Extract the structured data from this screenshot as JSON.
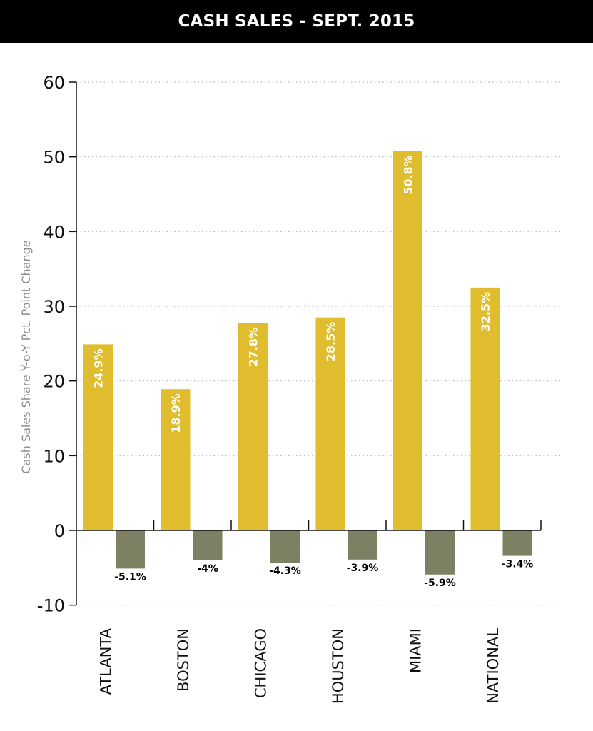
{
  "header": {
    "title": "CASH SALES - SEPT. 2015"
  },
  "chart_data": {
    "type": "bar",
    "title": "CASH SALES - SEPT. 2015",
    "xlabel": "",
    "ylabel": "Cash Sales Share Y-o-Y Pct. Point Change",
    "categories": [
      "ATLANTA",
      "BOSTON",
      "CHICAGO",
      "HOUSTON",
      "MIAMI",
      "NATIONAL"
    ],
    "series": [
      {
        "values": [
          24.9,
          18.9,
          27.8,
          28.5,
          50.8,
          32.5
        ],
        "labels": [
          "24.9%",
          "18.9%",
          "27.8%",
          "28.5%",
          "50.8%",
          "32.5%"
        ],
        "color": "#e0bd2e"
      },
      {
        "values": [
          -5.1,
          -4,
          -4.3,
          -3.9,
          -5.9,
          -3.4
        ],
        "labels": [
          "-5.1%",
          "-4%",
          "-4.3%",
          "-3.9%",
          "-5.9%",
          "-3.4%"
        ],
        "color": "#7e8064"
      }
    ],
    "ylim": [
      -10,
      60
    ],
    "yticks": [
      -10,
      0,
      10,
      20,
      30,
      40,
      50,
      60
    ],
    "ytick_labels": [
      "-10",
      "0",
      "10",
      "20",
      "30",
      "40",
      "50",
      "60"
    ],
    "grid": "dotted horizontal",
    "legend": "none"
  }
}
